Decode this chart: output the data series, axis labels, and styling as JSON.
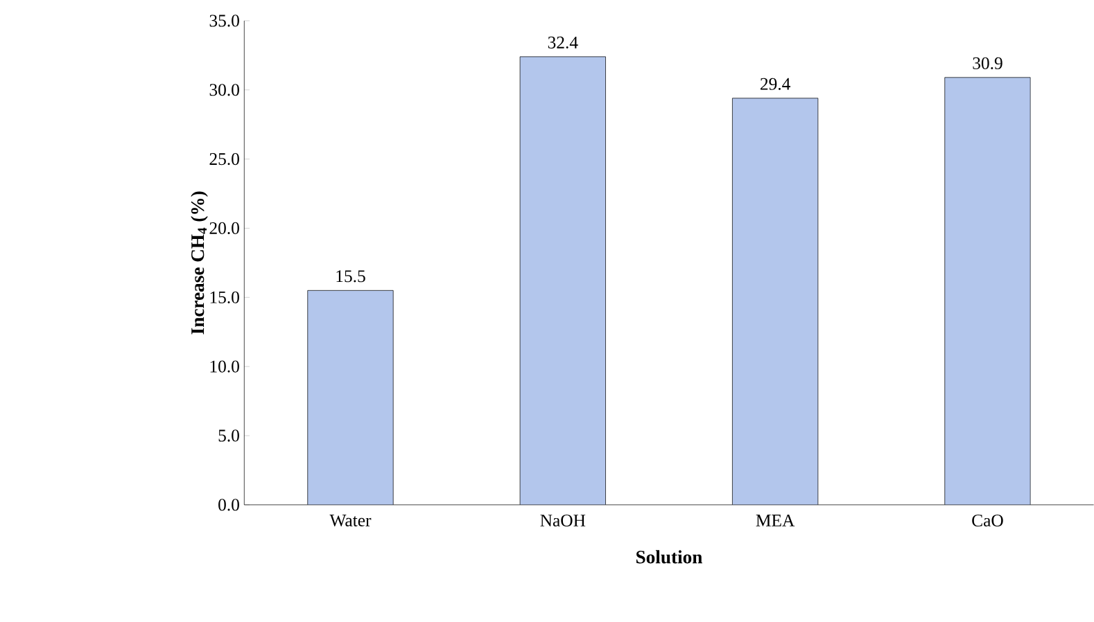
{
  "chart_data": {
    "type": "bar",
    "xlabel": "Solution",
    "ylabel": "Increase CH$_{4}$ (%)",
    "categories": [
      "Water",
      "NaOH",
      "MEA",
      "CaO"
    ],
    "values": [
      15.5,
      32.4,
      29.4,
      30.9
    ],
    "color": "#b3c6ec",
    "data_labels": true,
    "ylim": [
      0,
      35
    ],
    "yticks": [
      {
        "value": 0,
        "label": "0.0"
      },
      {
        "value": 5,
        "label": "5.0"
      },
      {
        "value": 10,
        "label": "10.0"
      },
      {
        "value": 15,
        "label": "15.0"
      },
      {
        "value": 20,
        "label": "20.0"
      },
      {
        "value": 25,
        "label": "25.0"
      },
      {
        "value": 30,
        "label": "30.0"
      },
      {
        "value": 35,
        "label": "35.0"
      }
    ],
    "grid": false
  }
}
